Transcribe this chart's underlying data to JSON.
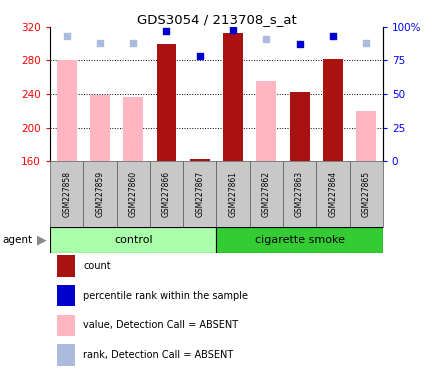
{
  "title": "GDS3054 / 213708_s_at",
  "samples": [
    "GSM227858",
    "GSM227859",
    "GSM227860",
    "GSM227866",
    "GSM227867",
    "GSM227861",
    "GSM227862",
    "GSM227863",
    "GSM227864",
    "GSM227865"
  ],
  "bar_values": [
    null,
    null,
    null,
    300,
    163,
    313,
    null,
    242,
    282,
    null
  ],
  "absent_values": [
    280,
    239,
    237,
    null,
    null,
    null,
    256,
    null,
    null,
    220
  ],
  "rank_dark": [
    null,
    null,
    null,
    97,
    78,
    98,
    null,
    87,
    93,
    null
  ],
  "rank_absent": [
    93,
    88,
    88,
    null,
    null,
    null,
    91,
    null,
    null,
    88
  ],
  "ylim": [
    160,
    320
  ],
  "y2lim": [
    0,
    100
  ],
  "yticks": [
    160,
    200,
    240,
    280,
    320
  ],
  "y2ticks": [
    0,
    25,
    50,
    75,
    100
  ],
  "grid_values": [
    200,
    240,
    280
  ],
  "bar_color_dark": "#AA1111",
  "bar_color_absent": "#FFB6C1",
  "rank_color_dark": "#0000CC",
  "rank_color_absent": "#AABBDD",
  "control_color": "#AAFFAA",
  "smoke_color": "#33CC33",
  "tick_bg": "#C8C8C8",
  "legend_items": [
    "count",
    "percentile rank within the sample",
    "value, Detection Call = ABSENT",
    "rank, Detection Call = ABSENT"
  ],
  "legend_colors": [
    "#AA1111",
    "#0000CC",
    "#FFB6C1",
    "#AABBDD"
  ]
}
